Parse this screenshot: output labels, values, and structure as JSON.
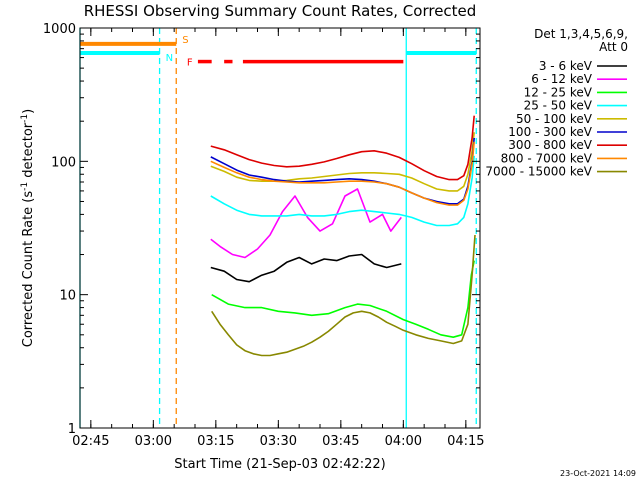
{
  "chart_data": {
    "type": "line",
    "title": "RHESSI Observing Summary Count Rates, Corrected",
    "xlabel": "Start Time (21-Sep-03 02:42:22)",
    "ylabel": "Corrected Count Rate (s",
    "ylabel_exp1": "-1",
    "ylabel_mid": " detector",
    "ylabel_exp2": "-1",
    "ylabel_end": ")",
    "yscale": "log",
    "ylim": [
      1,
      1000
    ],
    "xlim_minutes": [
      162.4,
      258.4
    ],
    "y_ticks": [
      {
        "value": 1,
        "label": "1"
      },
      {
        "value": 10,
        "label": "10"
      },
      {
        "value": 100,
        "label": "100"
      },
      {
        "value": 1000,
        "label": "1000"
      }
    ],
    "x_ticks": [
      {
        "minutes": 165,
        "label": "02:45"
      },
      {
        "minutes": 180,
        "label": "03:00"
      },
      {
        "minutes": 195,
        "label": "03:15"
      },
      {
        "minutes": 210,
        "label": "03:30"
      },
      {
        "minutes": 225,
        "label": "03:45"
      },
      {
        "minutes": 240,
        "label": "04:00"
      },
      {
        "minutes": 255,
        "label": "04:15"
      }
    ],
    "detector_title": "Det 1,3,4,5,6,9,",
    "attenuator_title": "Att 0",
    "series": [
      {
        "name": "3 - 6 keV",
        "color": "#000000",
        "t": [
          193.8,
          197,
          200,
          203,
          206,
          209,
          212,
          215,
          218,
          221,
          224,
          227,
          230,
          233,
          236,
          239.5
        ],
        "y": [
          16,
          15,
          13,
          12.5,
          14,
          15,
          17.5,
          19,
          17,
          18.5,
          18,
          19.5,
          20,
          17,
          16,
          17
        ]
      },
      {
        "name": "6 - 12 keV",
        "color": "#ff00ff",
        "t": [
          193.8,
          196,
          199,
          202,
          205,
          208,
          211,
          214,
          217,
          220,
          223,
          226,
          229,
          232,
          235,
          237,
          239.5
        ],
        "y": [
          26,
          23,
          20,
          19,
          22,
          28,
          42,
          55,
          38,
          30,
          34,
          55,
          62,
          35,
          40,
          30,
          38
        ]
      },
      {
        "name": "12 - 25 keV",
        "color": "#00ff00",
        "t": [
          194,
          198,
          202,
          206,
          210,
          214,
          218,
          222,
          226,
          229,
          232,
          236,
          240,
          243,
          246,
          249,
          252,
          254,
          255.5,
          256.3,
          257
        ],
        "y": [
          10,
          8.5,
          8,
          8,
          7.5,
          7.3,
          7,
          7.2,
          8,
          8.5,
          8.3,
          7.5,
          6.5,
          6,
          5.5,
          5,
          4.8,
          5,
          8,
          14,
          18
        ]
      },
      {
        "name": "25 - 50 keV",
        "color": "#00ffff",
        "t": [
          193.8,
          197,
          200,
          203,
          206,
          209,
          212,
          215,
          218,
          221,
          224,
          227,
          230,
          233,
          236,
          239,
          242,
          245,
          248,
          251,
          253,
          254.5,
          255.5,
          256.5,
          257
        ],
        "y": [
          55,
          48,
          43,
          40,
          39,
          39,
          39,
          40,
          39,
          39,
          40,
          42,
          43,
          42,
          41,
          40,
          38,
          35,
          33,
          33,
          34,
          38,
          48,
          75,
          110
        ]
      },
      {
        "name": "50 - 100 keV",
        "color": "#ccbb00",
        "t": [
          193.8,
          197,
          200,
          203,
          206,
          209,
          212,
          215,
          218,
          221,
          224,
          227,
          230,
          233,
          236,
          239,
          242,
          245,
          248,
          251,
          253,
          254.5,
          255.5,
          256.5,
          257
        ],
        "y": [
          92,
          84,
          76,
          72,
          71,
          71,
          72,
          74,
          75,
          77,
          79,
          81,
          82,
          82,
          81,
          80,
          75,
          68,
          62,
          60,
          60,
          65,
          80,
          120,
          165
        ]
      },
      {
        "name": "100 - 300 keV",
        "color": "#0000cc",
        "t": [
          193.8,
          197,
          200,
          203,
          206,
          209,
          212,
          215,
          218,
          221,
          224,
          227,
          230,
          233,
          236,
          239,
          242,
          245,
          248,
          251,
          253,
          254.5,
          255.5,
          256.5,
          257
        ],
        "y": [
          108,
          96,
          86,
          79,
          76,
          73,
          71,
          70,
          71,
          72,
          73,
          74,
          73,
          71,
          68,
          64,
          58,
          53,
          50,
          48,
          48,
          52,
          65,
          100,
          150
        ]
      },
      {
        "name": "300 - 800 keV",
        "color": "#dd0000",
        "t": [
          193.8,
          197,
          200,
          203,
          206,
          209,
          212,
          215,
          218,
          221,
          224,
          227,
          230,
          233,
          236,
          239,
          242,
          245,
          248,
          251,
          253,
          254.5,
          255.5,
          256.5,
          257
        ],
        "y": [
          130,
          122,
          112,
          103,
          97,
          93,
          91,
          92,
          95,
          99,
          105,
          112,
          118,
          120,
          115,
          107,
          96,
          85,
          77,
          73,
          73,
          78,
          95,
          150,
          220
        ]
      },
      {
        "name": "800 - 7000 keV",
        "color": "#ff8800",
        "t": [
          193.8,
          197,
          200,
          203,
          206,
          209,
          212,
          215,
          218,
          221,
          224,
          227,
          230,
          233,
          236,
          239,
          242,
          245,
          248,
          251,
          253,
          254.5,
          255.5,
          256.5,
          257
        ],
        "y": [
          100,
          90,
          82,
          76,
          73,
          71,
          70,
          69,
          69,
          69,
          70,
          71,
          71,
          70,
          68,
          64,
          58,
          53,
          49,
          47,
          47,
          51,
          62,
          95,
          140
        ]
      },
      {
        "name": "7000 - 15000 keV",
        "color": "#888800",
        "t": [
          194,
          196,
          198,
          200,
          202,
          204,
          206,
          208,
          210,
          212,
          214,
          216,
          218,
          220,
          222,
          224,
          226,
          228,
          230,
          232,
          234,
          236,
          238,
          240,
          243,
          246,
          249,
          252,
          254,
          255.5,
          256.5,
          257.2
        ],
        "y": [
          7.5,
          6,
          5,
          4.2,
          3.8,
          3.6,
          3.5,
          3.5,
          3.6,
          3.7,
          3.9,
          4.1,
          4.4,
          4.8,
          5.3,
          6,
          6.8,
          7.3,
          7.5,
          7.3,
          6.8,
          6.2,
          5.8,
          5.4,
          5,
          4.7,
          4.5,
          4.3,
          4.5,
          6,
          14,
          28
        ]
      }
    ],
    "annotations": {
      "saa": {
        "label": "S",
        "color": "#ff8800",
        "x_start": 162.4,
        "x_end": 185.5,
        "y": 760
      },
      "night": {
        "label": "N",
        "color": "#00ffff",
        "segments": [
          [
            162.4,
            181.5
          ],
          [
            240.7,
            257.5
          ]
        ],
        "y": 650
      },
      "flare": {
        "label": "F",
        "color": "#ff0000",
        "segments": [
          [
            190.7,
            194
          ],
          [
            197,
            199
          ],
          [
            201.5,
            240
          ]
        ],
        "y": 560
      },
      "vlines": [
        {
          "minutes": 162.4,
          "color": "#00ffff",
          "style": "solid"
        },
        {
          "minutes": 181.5,
          "color": "#00ffff",
          "style": "dashed"
        },
        {
          "minutes": 185.5,
          "color": "#ff8800",
          "style": "dashed"
        },
        {
          "minutes": 240.7,
          "color": "#00ffff",
          "style": "solid"
        },
        {
          "minutes": 257.5,
          "color": "#00ffff",
          "style": "dashed"
        }
      ]
    },
    "grid": false,
    "legend_position": "right"
  },
  "footer": {
    "timestamp": "23-Oct-2021 14:09"
  }
}
